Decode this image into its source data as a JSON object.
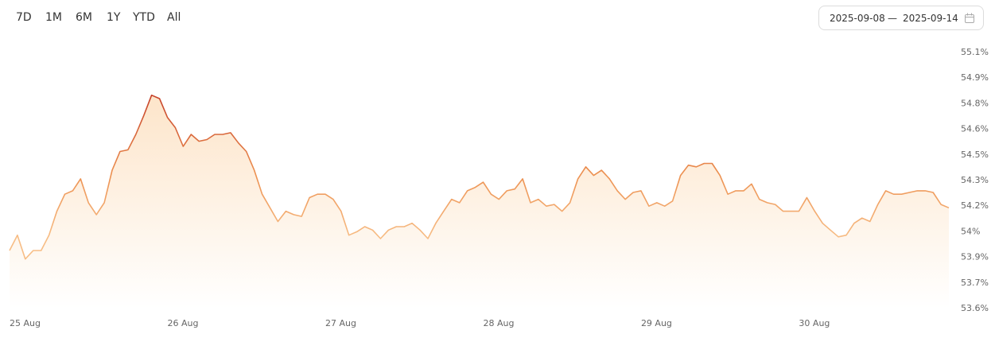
{
  "toolbar": {
    "ranges": [
      "7D",
      "1M",
      "6M",
      "1Y",
      "YTD",
      "All"
    ],
    "date_from": "2025-09-08",
    "date_separator": "—",
    "date_to": "2025-09-14"
  },
  "chart_data": {
    "type": "area",
    "categories": [
      "25 Aug",
      null,
      null,
      null,
      null,
      null,
      null,
      null,
      null,
      null,
      null,
      null,
      null,
      null,
      null,
      null,
      null,
      null,
      null,
      null,
      "26 Aug",
      null,
      null,
      null,
      null,
      null,
      null,
      null,
      null,
      null,
      null,
      null,
      null,
      null,
      null,
      null,
      null,
      null,
      null,
      null,
      "27 Aug",
      null,
      null,
      null,
      null,
      null,
      null,
      null,
      null,
      null,
      null,
      null,
      null,
      null,
      null,
      null,
      null,
      null,
      null,
      null,
      "28 Aug",
      null,
      null,
      null,
      null,
      null,
      null,
      null,
      null,
      null,
      null,
      null,
      null,
      null,
      null,
      null,
      null,
      null,
      null,
      null,
      "29 Aug",
      null,
      null,
      null,
      null,
      null,
      null,
      null,
      null,
      null,
      null,
      null,
      null,
      null,
      null,
      null,
      null,
      null,
      null,
      null,
      "30 Aug",
      null,
      null,
      null,
      null,
      null,
      null,
      null,
      null,
      null,
      null,
      null,
      null,
      null,
      null,
      null,
      null,
      null,
      null,
      null
    ],
    "values": [
      53.94,
      54.03,
      53.89,
      53.94,
      53.94,
      54.03,
      54.17,
      54.27,
      54.29,
      54.36,
      54.22,
      54.15,
      54.22,
      54.41,
      54.52,
      54.53,
      54.62,
      54.73,
      54.85,
      54.83,
      54.72,
      54.66,
      54.55,
      54.62,
      54.58,
      54.59,
      54.62,
      54.62,
      54.63,
      54.57,
      54.52,
      54.41,
      54.27,
      54.19,
      54.11,
      54.17,
      54.15,
      54.14,
      54.25,
      54.27,
      54.27,
      54.24,
      54.17,
      54.03,
      54.05,
      54.08,
      54.06,
      54.01,
      54.06,
      54.08,
      54.08,
      54.1,
      54.06,
      54.01,
      54.1,
      54.17,
      54.24,
      54.22,
      54.29,
      54.31,
      54.34,
      54.27,
      54.24,
      54.29,
      54.3,
      54.36,
      54.22,
      54.24,
      54.2,
      54.21,
      54.17,
      54.22,
      54.36,
      54.43,
      54.38,
      54.41,
      54.36,
      54.29,
      54.24,
      54.28,
      54.29,
      54.2,
      54.22,
      54.2,
      54.23,
      54.38,
      54.44,
      54.43,
      54.45,
      54.45,
      54.38,
      54.27,
      54.29,
      54.29,
      54.33,
      54.24,
      54.22,
      54.21,
      54.17,
      54.17,
      54.17,
      54.25,
      54.17,
      54.1,
      54.06,
      54.02,
      54.03,
      54.1,
      54.13,
      54.11,
      54.21,
      54.29,
      54.27,
      54.27,
      54.28,
      54.29,
      54.29,
      54.28,
      54.21,
      54.19
    ],
    "ylim": [
      53.6,
      55.1
    ],
    "yticks": [
      {
        "value": 53.6,
        "label": "53.6%"
      },
      {
        "value": 53.75,
        "label": "53.7%"
      },
      {
        "value": 53.9,
        "label": "53.9%"
      },
      {
        "value": 54.05,
        "label": "54%"
      },
      {
        "value": 54.2,
        "label": "54.2%"
      },
      {
        "value": 54.35,
        "label": "54.3%"
      },
      {
        "value": 54.5,
        "label": "54.5%"
      },
      {
        "value": 54.65,
        "label": "54.6%"
      },
      {
        "value": 54.8,
        "label": "54.8%"
      },
      {
        "value": 54.95,
        "label": "54.9%"
      },
      {
        "value": 55.1,
        "label": "55.1%"
      }
    ],
    "line_colors": [
      "#c43d27",
      "#ec8f4f",
      "#f7bd85"
    ],
    "fill_color": "#fcdcb8"
  }
}
